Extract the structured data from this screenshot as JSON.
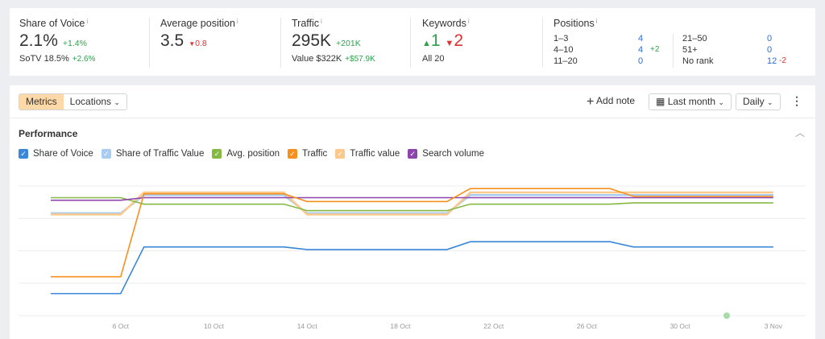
{
  "summary": {
    "sov": {
      "label": "Share of Voice",
      "value": "2.1%",
      "delta": "+1.4%",
      "sub_label": "SoTV",
      "sub_value": "18.5%",
      "sub_delta": "+2.6%"
    },
    "avg": {
      "label": "Average position",
      "value": "3.5",
      "delta": "0.8"
    },
    "traffic": {
      "label": "Traffic",
      "value": "295K",
      "delta": "+201K",
      "sub_label": "Value",
      "sub_value": "$322K",
      "sub_delta": "+$57.9K"
    },
    "keywords": {
      "label": "Keywords",
      "up": "1",
      "down": "2",
      "sub_label": "All",
      "sub_value": "20"
    },
    "positions": {
      "label": "Positions",
      "rows": [
        {
          "name": "1–3",
          "value": "4",
          "delta": ""
        },
        {
          "name": "4–10",
          "value": "4",
          "delta": "+2"
        },
        {
          "name": "11–20",
          "value": "0",
          "delta": ""
        },
        {
          "name": "21–50",
          "value": "0",
          "delta": ""
        },
        {
          "name": "51+",
          "value": "0",
          "delta": ""
        },
        {
          "name": "No rank",
          "value": "12",
          "delta": "-2"
        }
      ]
    }
  },
  "toolbar": {
    "metrics": "Metrics",
    "locations": "Locations",
    "add_note": "Add note",
    "period": "Last month",
    "granularity": "Daily"
  },
  "section_title": "Performance",
  "chart_data": {
    "type": "line",
    "grid": true,
    "legend": "top-left",
    "ylim": [
      0,
      100
    ],
    "x": [
      "3 Oct",
      "6 Oct",
      "7 Oct",
      "13 Oct",
      "14 Oct",
      "20 Oct",
      "21 Oct",
      "27 Oct",
      "28 Oct",
      "3 Nov"
    ],
    "xticks": [
      "6 Oct",
      "10 Oct",
      "14 Oct",
      "18 Oct",
      "22 Oct",
      "26 Oct",
      "30 Oct",
      "3 Nov"
    ],
    "note_marker": "1 Nov",
    "series": [
      {
        "name": "Share of Voice",
        "color": "#3a86d8",
        "values": [
          17,
          17,
          53,
          53,
          51,
          51,
          57,
          57,
          53,
          53
        ]
      },
      {
        "name": "Share of Traffic Value",
        "color": "#a9cdf2",
        "values": [
          79,
          79,
          93,
          93,
          79,
          79,
          93,
          93,
          93,
          93
        ]
      },
      {
        "name": "Avg. position",
        "color": "#86b944",
        "values": [
          91,
          91,
          86,
          86,
          81,
          81,
          86,
          86,
          87,
          87
        ]
      },
      {
        "name": "Traffic",
        "color": "#f7901e",
        "values": [
          30,
          30,
          94,
          94,
          88,
          88,
          98,
          98,
          92,
          92
        ]
      },
      {
        "name": "Traffic value",
        "color": "#fcc98b",
        "values": [
          78,
          78,
          95,
          95,
          78,
          78,
          95,
          95,
          95,
          95
        ]
      },
      {
        "name": "Search volume",
        "color": "#8e44ad",
        "values": [
          89,
          89,
          91,
          91,
          91,
          91,
          91,
          91,
          91,
          91
        ]
      }
    ]
  }
}
